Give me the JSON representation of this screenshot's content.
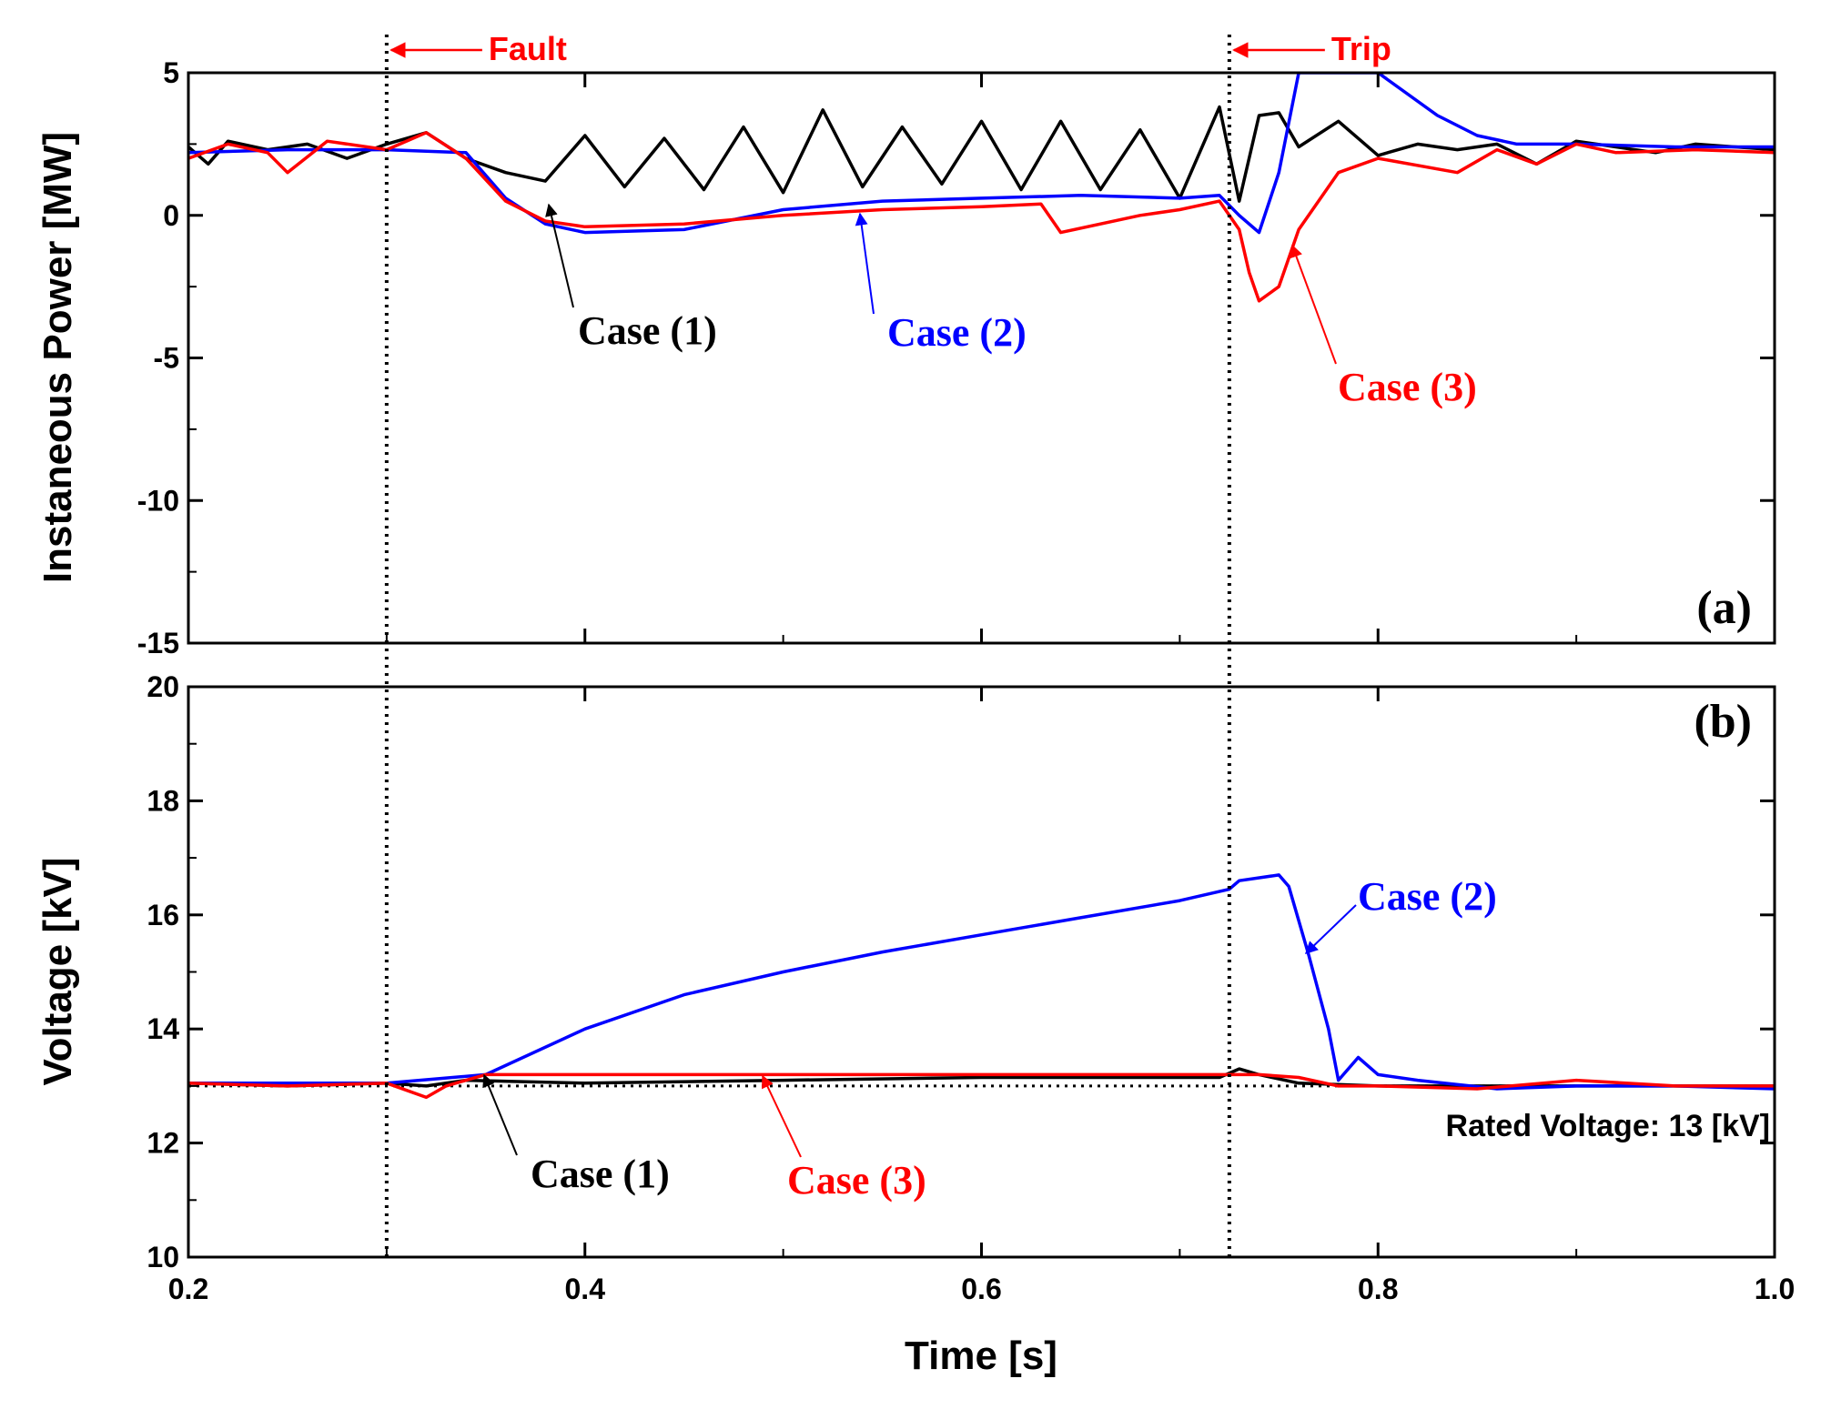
{
  "chart_data": [
    {
      "type": "line",
      "panel_label": "(a)",
      "ylabel": "Instaneous Power [MW]",
      "xlim": [
        0.2,
        1.0
      ],
      "ylim": [
        -15,
        5
      ],
      "yticks": [
        5,
        0,
        -5,
        -10,
        -15
      ],
      "ytick_labels": [
        "5",
        "0",
        "-5",
        "-10",
        "-15"
      ],
      "series": [
        {
          "name": "Case (1)",
          "color": "#000000",
          "x": [
            0.2,
            0.21,
            0.22,
            0.24,
            0.26,
            0.28,
            0.3,
            0.32,
            0.34,
            0.36,
            0.38,
            0.4,
            0.42,
            0.44,
            0.46,
            0.48,
            0.5,
            0.52,
            0.54,
            0.56,
            0.58,
            0.6,
            0.62,
            0.64,
            0.66,
            0.68,
            0.7,
            0.72,
            0.73,
            0.74,
            0.75,
            0.76,
            0.78,
            0.8,
            0.82,
            0.84,
            0.86,
            0.88,
            0.9,
            0.92,
            0.94,
            0.96,
            0.98,
            1.0
          ],
          "y": [
            2.4,
            1.8,
            2.6,
            2.3,
            2.5,
            2.0,
            2.5,
            2.9,
            2.0,
            1.5,
            1.2,
            2.8,
            1.0,
            2.7,
            0.9,
            3.1,
            0.8,
            3.7,
            1.0,
            3.1,
            1.1,
            3.3,
            0.9,
            3.3,
            0.9,
            3.0,
            0.6,
            3.8,
            0.5,
            3.5,
            3.6,
            2.4,
            3.3,
            2.1,
            2.5,
            2.3,
            2.5,
            1.8,
            2.6,
            2.4,
            2.2,
            2.5,
            2.4,
            2.3
          ]
        },
        {
          "name": "Case (2)",
          "color": "#0000ff",
          "x": [
            0.2,
            0.25,
            0.3,
            0.34,
            0.36,
            0.38,
            0.4,
            0.45,
            0.5,
            0.55,
            0.6,
            0.65,
            0.7,
            0.72,
            0.73,
            0.74,
            0.75,
            0.76,
            0.8,
            0.83,
            0.85,
            0.87,
            0.9,
            0.95,
            1.0
          ],
          "y": [
            2.2,
            2.3,
            2.3,
            2.2,
            0.6,
            -0.3,
            -0.6,
            -0.5,
            0.2,
            0.5,
            0.6,
            0.7,
            0.6,
            0.7,
            0.0,
            -0.6,
            1.5,
            5.0,
            5.0,
            3.5,
            2.8,
            2.5,
            2.5,
            2.4,
            2.4
          ]
        },
        {
          "name": "Case (3)",
          "color": "#ff0000",
          "x": [
            0.2,
            0.22,
            0.24,
            0.25,
            0.27,
            0.3,
            0.32,
            0.34,
            0.36,
            0.38,
            0.4,
            0.45,
            0.5,
            0.55,
            0.6,
            0.63,
            0.64,
            0.68,
            0.7,
            0.72,
            0.73,
            0.735,
            0.74,
            0.75,
            0.76,
            0.78,
            0.8,
            0.84,
            0.86,
            0.88,
            0.9,
            0.92,
            0.96,
            1.0
          ],
          "y": [
            2.0,
            2.5,
            2.2,
            1.5,
            2.6,
            2.3,
            2.9,
            2.0,
            0.5,
            -0.2,
            -0.4,
            -0.3,
            0.0,
            0.2,
            0.3,
            0.4,
            -0.6,
            0.0,
            0.2,
            0.5,
            -0.5,
            -2.0,
            -3.0,
            -2.5,
            -0.5,
            1.5,
            2.0,
            1.5,
            2.3,
            1.8,
            2.5,
            2.2,
            2.3,
            2.2
          ]
        }
      ],
      "annotations": [
        {
          "text": "Case (1)",
          "color": "#000000"
        },
        {
          "text": "Case (2)",
          "color": "#0000ff"
        },
        {
          "text": "Case (3)",
          "color": "#ff0000"
        }
      ]
    },
    {
      "type": "line",
      "panel_label": "(b)",
      "ylabel": "Voltage [kV]",
      "xlabel": "Time [s]",
      "xlim": [
        0.2,
        1.0
      ],
      "ylim": [
        10,
        20
      ],
      "xticks": [
        0.2,
        0.4,
        0.6,
        0.8,
        1.0
      ],
      "xtick_labels": [
        "0.2",
        "0.4",
        "0.6",
        "0.8",
        "1.0"
      ],
      "yticks": [
        20,
        18,
        16,
        14,
        12,
        10
      ],
      "ytick_labels": [
        "20",
        "18",
        "16",
        "14",
        "12",
        "10"
      ],
      "reference_line": {
        "y": 13,
        "label": "Rated Voltage: 13 [kV]"
      },
      "series": [
        {
          "name": "Case (1)",
          "color": "#000000",
          "x": [
            0.2,
            0.25,
            0.3,
            0.32,
            0.34,
            0.4,
            0.5,
            0.6,
            0.7,
            0.72,
            0.73,
            0.74,
            0.76,
            0.8,
            0.85,
            0.9,
            0.95,
            1.0
          ],
          "y": [
            13.05,
            13.0,
            13.05,
            13.0,
            13.1,
            13.05,
            13.1,
            13.15,
            13.15,
            13.15,
            13.3,
            13.2,
            13.05,
            13.0,
            13.0,
            13.0,
            13.0,
            13.0
          ]
        },
        {
          "name": "Case (2)",
          "color": "#0000ff",
          "x": [
            0.2,
            0.3,
            0.35,
            0.4,
            0.45,
            0.5,
            0.55,
            0.6,
            0.65,
            0.7,
            0.725,
            0.73,
            0.75,
            0.755,
            0.765,
            0.775,
            0.78,
            0.79,
            0.8,
            0.82,
            0.86,
            0.9,
            0.95,
            1.0
          ],
          "y": [
            13.05,
            13.05,
            13.2,
            14.0,
            14.6,
            15.0,
            15.35,
            15.65,
            15.95,
            16.25,
            16.45,
            16.6,
            16.7,
            16.5,
            15.3,
            14.0,
            13.1,
            13.5,
            13.2,
            13.1,
            12.95,
            13.0,
            13.0,
            12.95
          ]
        },
        {
          "name": "Case (3)",
          "color": "#ff0000",
          "x": [
            0.2,
            0.25,
            0.3,
            0.32,
            0.33,
            0.34,
            0.35,
            0.5,
            0.6,
            0.7,
            0.72,
            0.74,
            0.76,
            0.78,
            0.8,
            0.85,
            0.9,
            0.95,
            1.0
          ],
          "y": [
            13.05,
            13.0,
            13.05,
            12.8,
            13.0,
            13.1,
            13.2,
            13.2,
            13.2,
            13.2,
            13.2,
            13.2,
            13.15,
            13.0,
            13.0,
            12.95,
            13.1,
            13.0,
            13.0
          ]
        }
      ],
      "annotations": [
        {
          "text": "Case (2)",
          "color": "#0000ff"
        },
        {
          "text": "Case (1)",
          "color": "#000000"
        },
        {
          "text": "Case (3)",
          "color": "#ff0000"
        }
      ]
    }
  ],
  "events": [
    {
      "label": "Fault",
      "x": 0.3,
      "color": "#ff0000"
    },
    {
      "label": "Trip",
      "x": 0.725,
      "color": "#ff0000"
    }
  ]
}
